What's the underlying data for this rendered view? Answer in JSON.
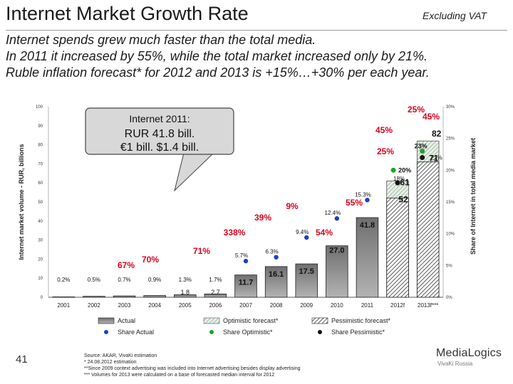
{
  "header": {
    "title": "Internet Market Growth Rate",
    "badge": "Excluding VAT",
    "subtitle": [
      "Internet spends grew much faster than the total media.",
      "In 2011 it increased by 55%, while the total market increased only by 21%.",
      "Ruble inflation forecast* for 2012 and 2013 is +15%…+30% per each year."
    ]
  },
  "chart_data": {
    "type": "bar",
    "y_label_left": "Internet market volume - RUR, billions",
    "y_label_right": "Share of Internet in total media market",
    "ylim": [
      0,
      100
    ],
    "y_ticks": [
      0,
      10,
      20,
      30,
      40,
      50,
      60,
      70,
      80,
      90,
      100
    ],
    "y2lim": [
      0,
      30
    ],
    "y2_ticks": [
      "0%",
      "5%",
      "10%",
      "15%",
      "20%",
      "25%",
      "30%"
    ],
    "categories": [
      "2001",
      "2002",
      "2003",
      "2004",
      "2005",
      "2006",
      "2007",
      "2008",
      "2009",
      "2010",
      "2011",
      "2012f",
      "2013f***"
    ],
    "series": [
      {
        "name": "Actual",
        "values": [
          0.2,
          0.5,
          0.7,
          0.9,
          1.3,
          1.7,
          11.7,
          16.1,
          17.5,
          27.0,
          41.8,
          null,
          null
        ]
      },
      {
        "name": "Optimistic forecast*",
        "values": [
          null,
          null,
          null,
          null,
          null,
          null,
          null,
          null,
          null,
          null,
          null,
          61,
          82
        ]
      },
      {
        "name": "Pessimistic forecast*",
        "values": [
          null,
          null,
          null,
          null,
          null,
          null,
          null,
          null,
          null,
          null,
          null,
          52,
          71
        ]
      }
    ],
    "bar_labels": [
      "0.2%",
      "0.5%",
      "0.7%",
      "0.9%",
      "1.3%",
      "1.7%",
      "11.7",
      "16.1",
      "17.5",
      "27.0",
      "41.8",
      "",
      ""
    ],
    "extra_labels": [
      {
        "cat": "2005",
        "text": "1.8"
      },
      {
        "cat": "2006",
        "text": "2.7"
      }
    ],
    "forecast_labels": [
      {
        "cat": "2012f",
        "optimistic": "61",
        "pessimistic": "52"
      },
      {
        "cat": "2013f***",
        "optimistic": "82",
        "pessimistic": "71"
      }
    ],
    "share_actual": [
      null,
      null,
      null,
      null,
      null,
      null,
      5.7,
      6.3,
      9.4,
      12.4,
      15.3,
      null,
      null
    ],
    "share_actual_labels": [
      "",
      "",
      "",
      "",
      "",
      "",
      "5.7%",
      "6.3%",
      "9.4%",
      "12.4%",
      "15.3%",
      "",
      ""
    ],
    "share_optimistic": {
      "cat": "2012f",
      "value": 20,
      "label": "20%"
    },
    "share_pessimistic": [
      {
        "cat": "2012f",
        "value": 18,
        "label": "18%"
      },
      {
        "cat": "2013f***",
        "value": 22,
        "label": "22%"
      }
    ],
    "share_optimistic_2013": {
      "cat": "2013f***",
      "value": 23,
      "label": "23%"
    },
    "growth_labels": [
      {
        "text": "67%",
        "color": "#d9001b"
      },
      {
        "text": "70%",
        "color": "#d9001b"
      },
      {
        "text": "71%",
        "color": "#d9001b"
      },
      {
        "text": "338%",
        "color": "#d9001b"
      },
      {
        "text": "39%",
        "color": "#d9001b"
      },
      {
        "text": "9%",
        "color": "#d9001b"
      },
      {
        "text": "54%",
        "color": "#d9001b"
      },
      {
        "text": "55%",
        "color": "#d9001b"
      },
      {
        "text": "45%",
        "color": "#d9001b"
      },
      {
        "text": "25%",
        "color": "#d9001b"
      },
      {
        "text": "45%",
        "color": "#d9001b"
      },
      {
        "text": "25%",
        "color": "#d9001b"
      }
    ],
    "callout": {
      "line1": "Internet 2011:",
      "line2": "RUR 41.8 bill.",
      "line3": "€1 bill. $1.4 bill."
    },
    "legend": [
      {
        "name": "Actual",
        "kind": "bar-actual"
      },
      {
        "name": "Optimistic forecast*",
        "kind": "bar-optimistic"
      },
      {
        "name": "Pessimistic forecast*",
        "kind": "bar-pessimistic"
      },
      {
        "name": "Share Actual",
        "kind": "dot-blue"
      },
      {
        "name": "Share Optimistic*",
        "kind": "dot-green"
      },
      {
        "name": "Share Pessimistic*",
        "kind": "dot-black"
      }
    ],
    "colors": {
      "growth": "#d9001b",
      "share_actual": "#1f3fbf",
      "share_optimistic": "#22a02a",
      "share_pessimistic": "#111111",
      "bar_fill": "#8c8c8c"
    }
  },
  "footer": {
    "slide_number": "41",
    "footnotes": [
      "Source: AKAR, VivaKi estimation",
      "* 24.08.2012 estimation",
      "**Since 2009 context advertising was included into Internet advertising besides display advertising",
      "*** Volumes for 2013 were calculated on a base of forecasted median interval for 2012"
    ],
    "logo_name": "MediaLogics",
    "logo_sub": "VivaKi Russia"
  }
}
